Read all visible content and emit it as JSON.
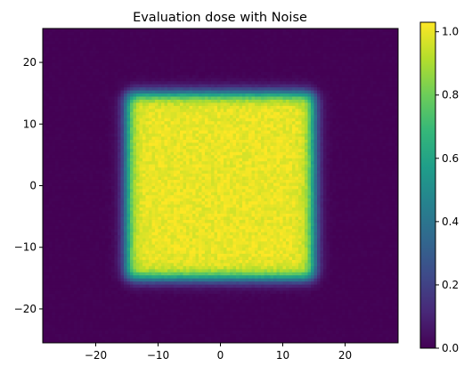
{
  "chart_data": {
    "type": "heatmap",
    "title": "Evaluation dose with Noise",
    "xlabel": "",
    "ylabel": "",
    "xlim": [
      -28.5,
      28.5
    ],
    "ylim": [
      -25.5,
      25.5
    ],
    "x_ticks": [
      -20,
      -10,
      0,
      10,
      20
    ],
    "y_ticks": [
      20,
      10,
      0,
      -10,
      -20
    ],
    "x_tick_labels": [
      "−20",
      "−10",
      "0",
      "10",
      "20"
    ],
    "y_tick_labels": [
      "20",
      "10",
      "0",
      "−10",
      "−20"
    ],
    "field": {
      "shape": "square",
      "x_range": [
        -15,
        15
      ],
      "y_range": [
        -15,
        15
      ],
      "inside_value": 1.0,
      "outside_value": 0.0,
      "noise_amplitude": 0.03
    },
    "colormap": "viridis",
    "colorbar": {
      "vmin": 0.0,
      "vmax": 1.03,
      "ticks": [
        0.0,
        0.2,
        0.4,
        0.6,
        0.8,
        1.0
      ],
      "tick_labels": [
        "0.0",
        "0.2",
        "0.4",
        "0.6",
        "0.8",
        "1.0"
      ]
    },
    "grid": false,
    "legend": "none"
  }
}
